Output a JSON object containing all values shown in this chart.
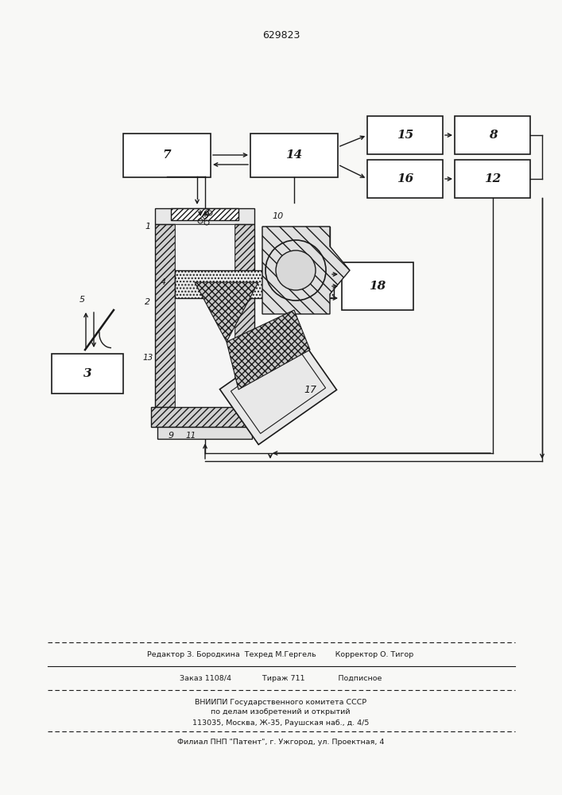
{
  "patent_number": "629823",
  "bg_color": "#f8f8f6",
  "text_color": "#1a1a1a",
  "box_color": "#ffffff",
  "box_edge": "#1a1a1a",
  "line_color": "#1a1a1a",
  "footer_line1": "Редактор З. Бородкина  Техред М.Гергель        Корректор О. Тигор",
  "footer_line2": "Заказ 1108/4             Тираж 711              Подписное",
  "footer_line3": "ВНИИПИ Государственного комитета СССР",
  "footer_line4": "по делам изобретений и открытий",
  "footer_line5": "113035, Москва, Ж-35, Раушская наб., д. 4/5",
  "footer_line6": "Филиал ПНП \"Патент\", г. Ужгород, ул. Проектная, 4"
}
